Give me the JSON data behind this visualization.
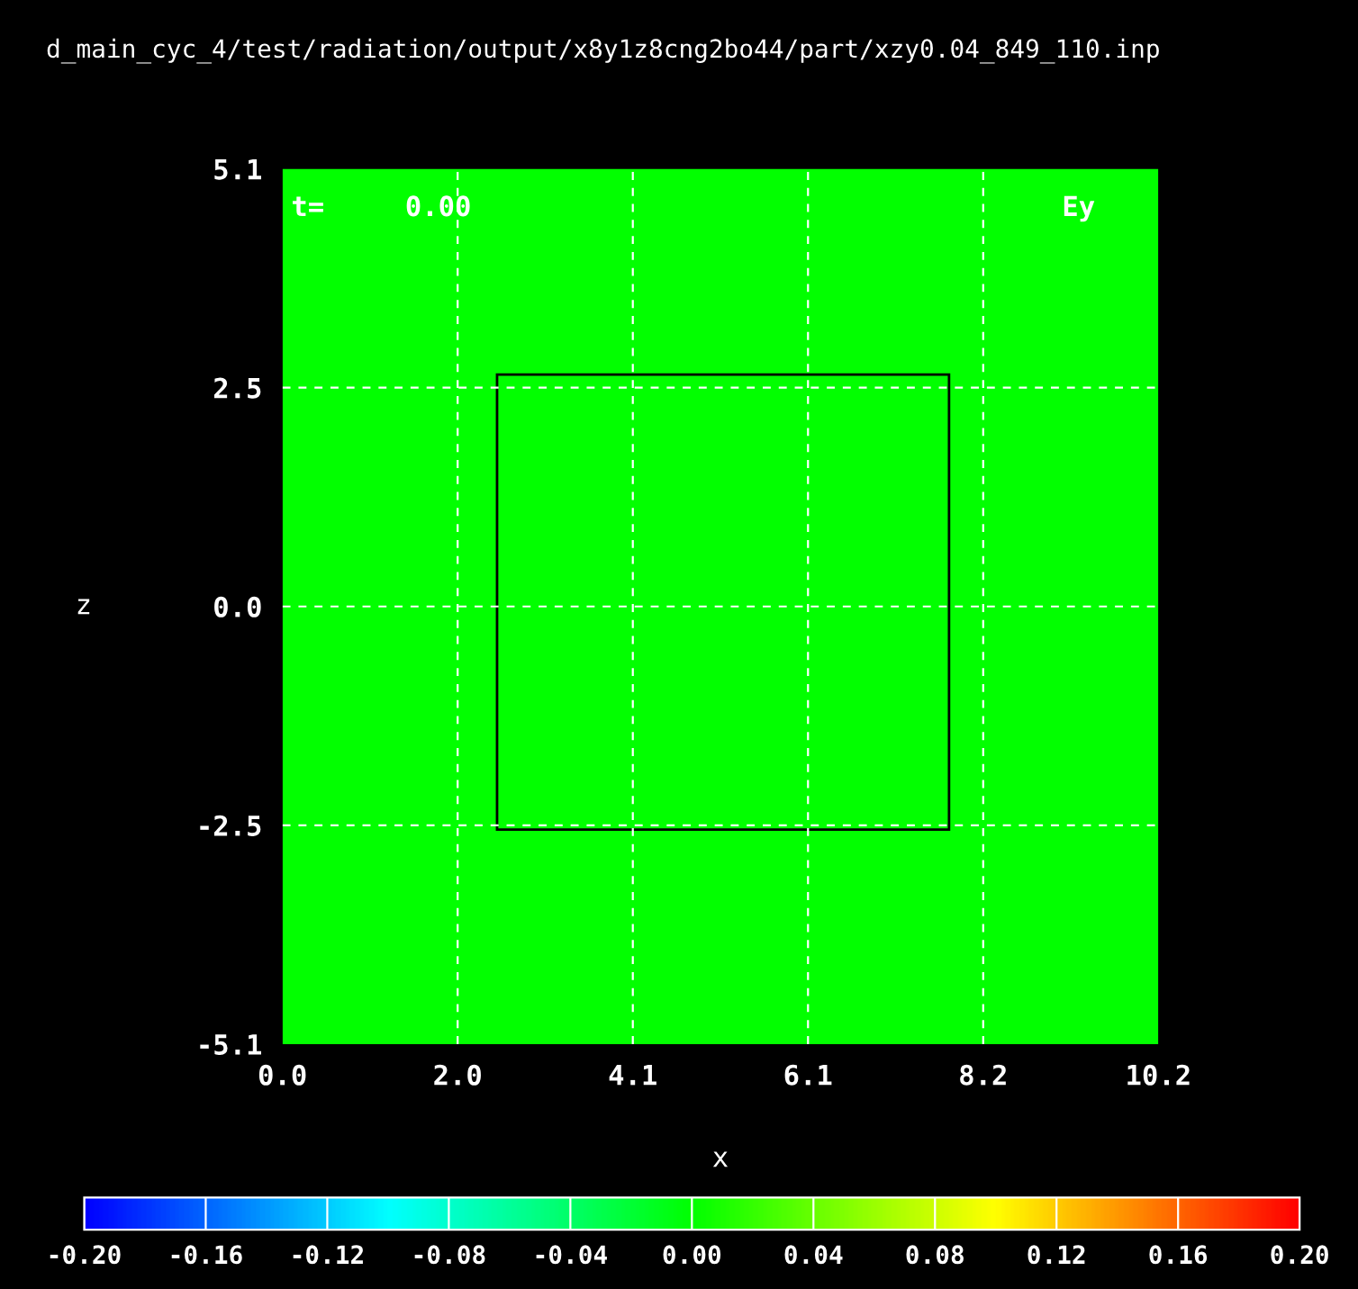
{
  "chart_data": {
    "type": "heatmap",
    "title": "d_main_cyc_4/test/radiation/output/x8y1z8cng2bo44/part/xzy0.04_849_110.inp",
    "xlabel": "x",
    "ylabel": "z",
    "cells": [
      [
        0.0
      ]
    ],
    "xlim": [
      0,
      10.2
    ],
    "ylim": [
      -5.1,
      5.1
    ],
    "xticks": [
      {
        "value": 0,
        "label": "0.0"
      },
      {
        "value": 2.04,
        "label": "2.0"
      },
      {
        "value": 4.08,
        "label": "4.1"
      },
      {
        "value": 6.12,
        "label": "6.1"
      },
      {
        "value": 8.16,
        "label": "8.2"
      },
      {
        "value": 10.2,
        "label": "10.2"
      }
    ],
    "yticks": [
      {
        "value": -5.1,
        "label": "-5.1"
      },
      {
        "value": -2.55,
        "label": "-2.5"
      },
      {
        "value": 0,
        "label": "0.0"
      },
      {
        "value": 2.55,
        "label": "2.5"
      },
      {
        "value": 5.1,
        "label": "5.1"
      }
    ],
    "clim": [
      -0.2,
      0.2
    ],
    "cticks": [
      {
        "value": -0.2,
        "label": "-0.20"
      },
      {
        "value": -0.16,
        "label": "-0.16"
      },
      {
        "value": -0.12,
        "label": "-0.12"
      },
      {
        "value": -0.08,
        "label": "-0.08"
      },
      {
        "value": -0.04,
        "label": "-0.04"
      },
      {
        "value": 0,
        "label": "0.00"
      },
      {
        "value": 0.04,
        "label": "0.04"
      },
      {
        "value": 0.08,
        "label": "0.08"
      },
      {
        "value": 0.12,
        "label": "0.12"
      },
      {
        "value": 0.16,
        "label": "0.16"
      },
      {
        "value": 0.2,
        "label": "0.20"
      }
    ],
    "grid": true,
    "annotations": [
      "t=",
      "0.00",
      "Ey"
    ]
  }
}
